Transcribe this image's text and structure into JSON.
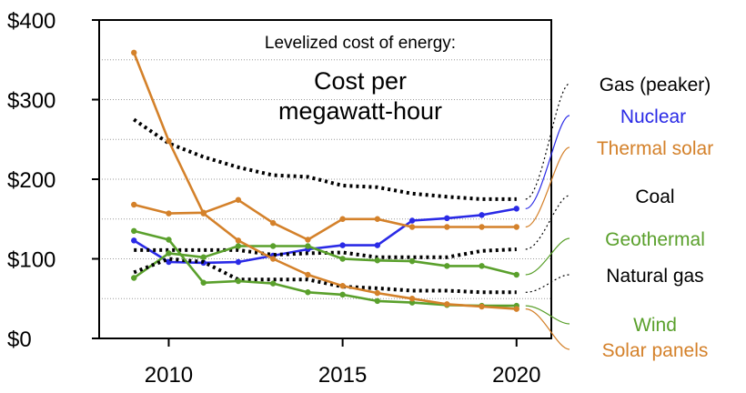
{
  "chart_data": {
    "type": "line",
    "title": "Levelized cost of energy:",
    "subtitle": "Cost per megawatt-hour",
    "subtitle_lines": [
      "Cost per",
      "megawatt-hour"
    ],
    "xlabel": "",
    "ylabel": "",
    "xlim": [
      2008,
      2021
    ],
    "ylim": [
      0,
      400
    ],
    "x_ticks": [
      "2010",
      "2015",
      "2020"
    ],
    "y_ticks": [
      "$0",
      "$100",
      "$200",
      "$300",
      "$400"
    ],
    "grid": "horizontal dotted",
    "legend": "right, labels at line ends",
    "x": [
      2009,
      2010,
      2011,
      2012,
      2013,
      2014,
      2015,
      2016,
      2017,
      2018,
      2019,
      2020
    ],
    "series": [
      {
        "name": "Gas (peaker)",
        "color": "#000000",
        "style": "dotted",
        "label_color": "#000000",
        "values": [
          275,
          245,
          228,
          215,
          205,
          203,
          192,
          190,
          182,
          178,
          175,
          175
        ]
      },
      {
        "name": "Nuclear",
        "color": "#2a2ae6",
        "style": "solid",
        "label_color": "#2a2ae6",
        "values": [
          123,
          96,
          95,
          96,
          104,
          112,
          117,
          117,
          148,
          151,
          155,
          163
        ]
      },
      {
        "name": "Thermal solar",
        "color": "#d4812a",
        "style": "solid",
        "label_color": "#d4812a",
        "values": [
          168,
          157,
          158,
          174,
          145,
          124,
          150,
          150,
          140,
          140,
          140,
          140
        ]
      },
      {
        "name": "Coal",
        "color": "#000000",
        "style": "dotted",
        "label_color": "#000000",
        "values": [
          111,
          111,
          111,
          111,
          105,
          107,
          108,
          102,
          102,
          102,
          110,
          112
        ]
      },
      {
        "name": "Geothermal",
        "color": "#5aa02c",
        "style": "solid",
        "label_color": "#5aa02c",
        "values": [
          76,
          107,
          102,
          116,
          116,
          116,
          100,
          98,
          97,
          91,
          91,
          80
        ]
      },
      {
        "name": "Natural gas",
        "color": "#000000",
        "style": "dotted",
        "label_color": "#000000",
        "values": [
          83,
          100,
          96,
          74,
          74,
          74,
          65,
          63,
          60,
          60,
          58,
          58
        ]
      },
      {
        "name": "Wind",
        "color": "#5aa02c",
        "style": "solid",
        "label_color": "#5aa02c",
        "values": [
          135,
          124,
          70,
          72,
          69,
          58,
          55,
          47,
          45,
          42,
          41,
          41
        ]
      },
      {
        "name": "Solar panels",
        "color": "#d4812a",
        "style": "solid",
        "label_color": "#d4812a",
        "values": [
          359,
          248,
          157,
          123,
          100,
          80,
          66,
          57,
          50,
          43,
          40,
          37
        ]
      }
    ]
  }
}
